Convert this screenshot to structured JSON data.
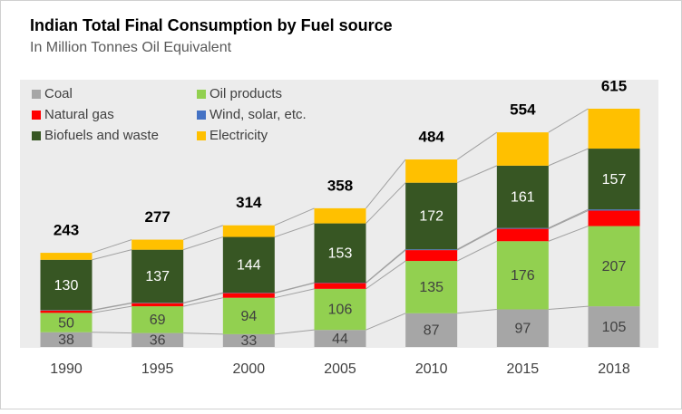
{
  "chart_data": {
    "type": "stacked_bar",
    "title": "Indian Total Final Consumption by Fuel source",
    "subtitle": "In Million Tonnes Oil Equivalent",
    "categories": [
      "1990",
      "1995",
      "2000",
      "2005",
      "2010",
      "2015",
      "2018"
    ],
    "series": [
      {
        "name": "Coal",
        "color": "#a6a6a6",
        "data_labels": true,
        "values": [
          38,
          36,
          33,
          44,
          87,
          97,
          105
        ]
      },
      {
        "name": "Oil products",
        "color": "#92d050",
        "data_labels": true,
        "values": [
          50,
          69,
          94,
          106,
          135,
          176,
          207
        ]
      },
      {
        "name": "Natural gas",
        "color": "#ff0000",
        "values": [
          6,
          8,
          12,
          15,
          28,
          32,
          40
        ]
      },
      {
        "name": "Wind, solar, etc.",
        "color": "#4472c4",
        "values": [
          1,
          1,
          1,
          1,
          2,
          2,
          3
        ]
      },
      {
        "name": "Biofuels and waste",
        "color": "#375623",
        "data_labels": true,
        "values": [
          130,
          137,
          144,
          153,
          172,
          161,
          157
        ]
      },
      {
        "name": "Electricity",
        "color": "#ffc000",
        "values": [
          18,
          26,
          30,
          39,
          60,
          86,
          103
        ]
      }
    ],
    "totals": [
      243,
      277,
      314,
      358,
      484,
      554,
      615
    ],
    "ylim": [
      0,
      615
    ]
  }
}
